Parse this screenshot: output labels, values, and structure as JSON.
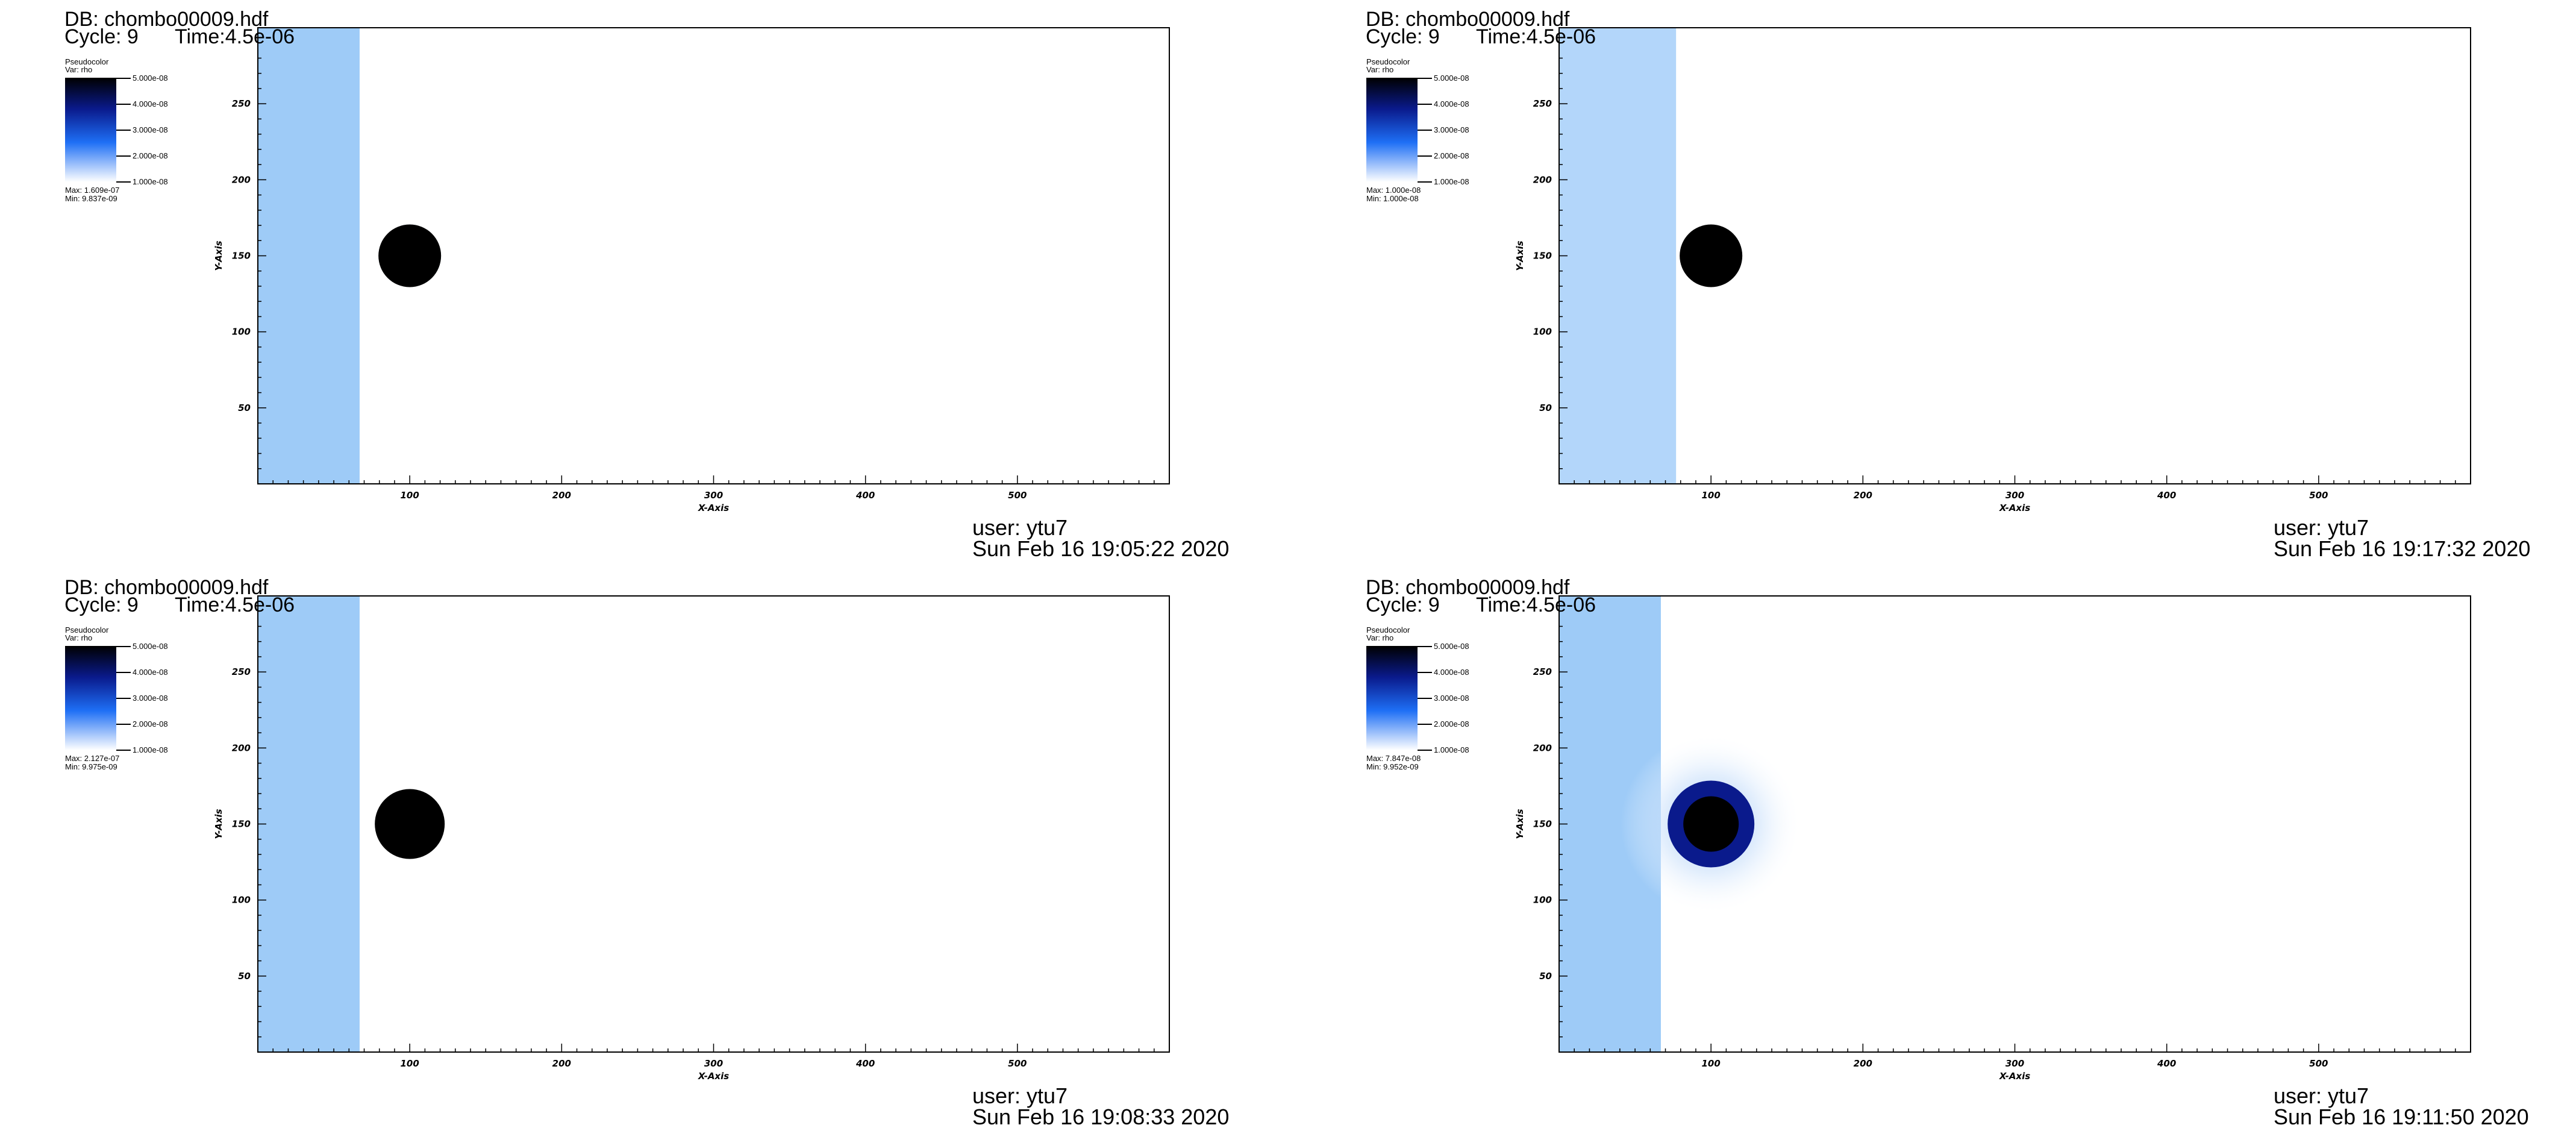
{
  "panels": [
    {
      "db": "DB: chombo00009.hdf",
      "cycle": "Cycle: 9",
      "time": "Time:4.5e-06",
      "legend": {
        "plot_type": "Pseudocolor",
        "variable": "Var: rho",
        "labels": [
          "5.000e-08",
          "4.000e-08",
          "3.000e-08",
          "2.000e-08",
          "1.000e-08"
        ],
        "max": "Max:  1.609e-07",
        "min": "Min:  9.837e-09"
      },
      "user": "user: ytu7",
      "date": "Sun Feb 16 19:05:22 2020",
      "band_color": "#9ecbf7",
      "halo": false
    },
    {
      "db": "DB: chombo00009.hdf",
      "cycle": "Cycle: 9",
      "time": "Time:4.5e-06",
      "legend": {
        "plot_type": "Pseudocolor",
        "variable": "Var: rho",
        "labels": [
          "5.000e-08",
          "4.000e-08",
          "3.000e-08",
          "2.000e-08",
          "1.000e-08"
        ],
        "max": "Max:  1.000e-08",
        "min": "Min:  1.000e-08"
      },
      "user": "user: ytu7",
      "date": "Sun Feb 16 19:17:32 2020",
      "band_color": "#b3d6fa",
      "halo": false
    },
    {
      "db": "DB: chombo00009.hdf",
      "cycle": "Cycle: 9",
      "time": "Time:4.5e-06",
      "legend": {
        "plot_type": "Pseudocolor",
        "variable": "Var: rho",
        "labels": [
          "5.000e-08",
          "4.000e-08",
          "3.000e-08",
          "2.000e-08",
          "1.000e-08"
        ],
        "max": "Max:  2.127e-07",
        "min": "Min:  9.975e-09"
      },
      "user": "user: ytu7",
      "date": "Sun Feb 16 19:08:33 2020",
      "band_color": "#9ecbf7",
      "halo": false
    },
    {
      "db": "DB: chombo00009.hdf",
      "cycle": "Cycle: 9",
      "time": "Time:4.5e-06",
      "legend": {
        "plot_type": "Pseudocolor",
        "variable": "Var: rho",
        "labels": [
          "5.000e-08",
          "4.000e-08",
          "3.000e-08",
          "2.000e-08",
          "1.000e-08"
        ],
        "max": "Max:  7.847e-08",
        "min": "Min:  9.952e-09"
      },
      "user": "user: ytu7",
      "date": "Sun Feb 16 19:11:50 2020",
      "band_color": "#9ecbf7",
      "halo": true
    }
  ],
  "axes": {
    "x_title": "X-Axis",
    "y_title": "Y-Axis",
    "x_ticks": [
      "100",
      "200",
      "300",
      "400",
      "500"
    ],
    "y_ticks": [
      "250",
      "200",
      "150",
      "100",
      "50"
    ]
  },
  "colors": {
    "colorbar_top": "#000000",
    "colorbar_mid": "#0a1a8c",
    "colorbar_blue": "#1e6ff5",
    "colorbar_bottom": "#ffffff",
    "obstacle": "#000000",
    "halo_ring": "#0a1a8c"
  }
}
